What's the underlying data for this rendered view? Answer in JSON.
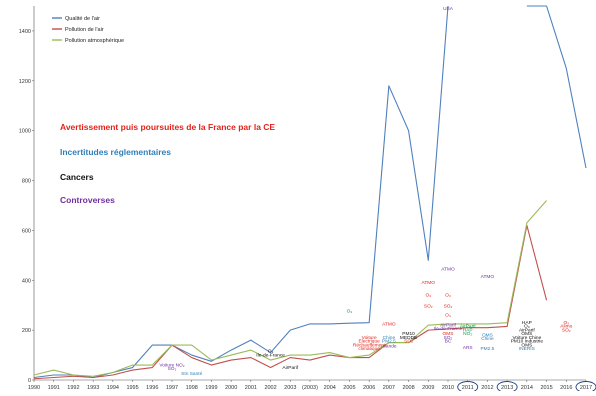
{
  "colors": {
    "air_quality": "#4f81bd",
    "air_pollution": "#c0504d",
    "atmospheric_pollution": "#9bbb59",
    "cat_red": "#e2231a",
    "cat_blue": "#2f7fb7",
    "cat_black": "#111111",
    "cat_purple": "#7030a0",
    "anno_green": "#00a050",
    "circle": "#1f3f7f"
  },
  "chart_data": {
    "type": "line",
    "categories": [
      "1990",
      "1991",
      "1992",
      "1993",
      "1994",
      "1995",
      "1996",
      "1997",
      "1998",
      "1999",
      "2000",
      "2001",
      "2002",
      "2003",
      "(2003)",
      "2004",
      "2005",
      "2006",
      "2007",
      "2008",
      "2009",
      "2010",
      "2011",
      "2012",
      "2013",
      "2014",
      "2015",
      "2016",
      "2017"
    ],
    "ylim": [
      0,
      1500
    ],
    "yticks": [
      0,
      200,
      400,
      600,
      800,
      1000,
      1200,
      1400
    ],
    "series": [
      {
        "name": "Qualité de l'air",
        "color_key": "air_quality",
        "values": [
          10,
          20,
          20,
          10,
          30,
          50,
          140,
          140,
          100,
          75,
          120,
          160,
          110,
          200,
          225,
          225,
          228,
          230,
          1180,
          1000,
          480,
          1500,
          null,
          null,
          null,
          1500,
          1500,
          1250,
          850
        ]
      },
      {
        "name": "Pollution de l'air",
        "color_key": "air_pollution",
        "values": [
          5,
          10,
          15,
          10,
          20,
          40,
          50,
          140,
          90,
          60,
          80,
          90,
          50,
          90,
          80,
          100,
          90,
          90,
          150,
          150,
          200,
          205,
          210,
          210,
          215,
          620,
          320,
          null,
          null
        ]
      },
      {
        "name": "Pollution atmosphérique",
        "color_key": "atmospheric_pollution",
        "values": [
          20,
          40,
          20,
          15,
          30,
          60,
          60,
          140,
          140,
          80,
          100,
          120,
          80,
          100,
          100,
          110,
          90,
          100,
          150,
          150,
          220,
          225,
          225,
          225,
          230,
          630,
          720,
          null,
          null
        ]
      }
    ],
    "category_labels": [
      {
        "text": "Avertissement puis poursuites de la France par la CE",
        "color_key": "cat_red"
      },
      {
        "text": "Incertitudes réglementaires",
        "color_key": "cat_blue"
      },
      {
        "text": "Cancers",
        "color_key": "cat_black"
      },
      {
        "text": "Controverses",
        "color_key": "cat_purple"
      }
    ],
    "annotations": [
      {
        "text": "USA",
        "color_key": "cat_purple",
        "cat": 21,
        "y": 1515
      },
      {
        "text": "ATMO",
        "color_key": "cat_purple",
        "cat": 21,
        "y": 440
      },
      {
        "text": "ATMO",
        "color_key": "cat_red",
        "cat": 20,
        "y": 385
      },
      {
        "text": "ATMO",
        "color_key": "cat_purple",
        "cat": 23,
        "y": 410
      },
      {
        "text": "O₃",
        "color_key": "cat_red",
        "cat": 20,
        "y": 335
      },
      {
        "text": "O₃",
        "color_key": "cat_red",
        "cat": 21,
        "y": 335
      },
      {
        "text": "SO₂",
        "color_key": "cat_red",
        "cat": 20,
        "y": 290
      },
      {
        "text": "SO₂",
        "color_key": "cat_red",
        "cat": 21,
        "y": 290
      },
      {
        "text": "O₃",
        "color_key": "cat_red",
        "cat": 21,
        "y": 255
      },
      {
        "text": "AirParif",
        "color_key": "cat_purple",
        "cat": 21,
        "y": 215
      },
      {
        "text": "Ile-de-France",
        "color_key": "cat_purple",
        "cat": 21,
        "y": 200
      },
      {
        "text": "OMS",
        "color_key": "cat_red",
        "cat": 21,
        "y": 180
      },
      {
        "text": "SO₂",
        "color_key": "cat_purple",
        "cat": 21,
        "y": 165
      },
      {
        "text": "BC",
        "color_key": "cat_purple",
        "cat": 21,
        "y": 150
      },
      {
        "text": "ARS",
        "color_key": "cat_purple",
        "cat": 22,
        "y": 125
      },
      {
        "text": "PM10",
        "color_key": "cat_black",
        "cat": 19,
        "y": 180
      },
      {
        "text": "MEDDE",
        "color_key": "cat_black",
        "cat": 19,
        "y": 165
      },
      {
        "text": "SO₂",
        "color_key": "cat_red",
        "cat": 19,
        "y": 150
      },
      {
        "text": "Islande",
        "color_key": "cat_purple",
        "cat": 18,
        "y": 130
      },
      {
        "text": "ATMO",
        "color_key": "cat_red",
        "cat": 18,
        "y": 218
      },
      {
        "text": "O₃",
        "color_key": "cat_green",
        "cat": 16,
        "y": 270
      },
      {
        "text": "Voiture",
        "color_key": "cat_red",
        "cat": 17,
        "y": 165
      },
      {
        "text": "Electrique",
        "color_key": "cat_red",
        "cat": 17,
        "y": 150
      },
      {
        "text": "Réchauffement",
        "color_key": "cat_red",
        "cat": 17,
        "y": 135
      },
      {
        "text": "climatique",
        "color_key": "cat_red",
        "cat": 17,
        "y": 120
      },
      {
        "text": "Chine",
        "color_key": "cat_blue",
        "cat": 18,
        "y": 165
      },
      {
        "text": "PM2.5",
        "color_key": "cat_blue",
        "cat": 18,
        "y": 150
      },
      {
        "text": "AirParif",
        "color_key": "cat_green",
        "cat": 22,
        "y": 210
      },
      {
        "text": "HAP",
        "color_key": "cat_green",
        "cat": 22,
        "y": 195
      },
      {
        "text": "NO₂",
        "color_key": "cat_green",
        "cat": 22,
        "y": 180
      },
      {
        "text": "OMS",
        "color_key": "cat_blue",
        "cat": 23,
        "y": 175
      },
      {
        "text": "Chine",
        "color_key": "cat_blue",
        "cat": 23,
        "y": 160
      },
      {
        "text": "PM2.5",
        "color_key": "cat_blue",
        "cat": 23,
        "y": 120
      },
      {
        "text": "HAP",
        "color_key": "cat_black",
        "cat": 25,
        "y": 225
      },
      {
        "text": "O₃",
        "color_key": "cat_black",
        "cat": 25,
        "y": 210
      },
      {
        "text": "AirParif",
        "color_key": "cat_black",
        "cat": 25,
        "y": 195
      },
      {
        "text": "OMS",
        "color_key": "cat_black",
        "cat": 25,
        "y": 180
      },
      {
        "text": "Voiture Chine",
        "color_key": "cat_black",
        "cat": 25,
        "y": 165
      },
      {
        "text": "PM10 Industrie",
        "color_key": "cat_black",
        "cat": 25,
        "y": 150
      },
      {
        "text": "OMS",
        "color_key": "cat_black",
        "cat": 25,
        "y": 135
      },
      {
        "text": "INERIS",
        "color_key": "cat_blue",
        "cat": 25,
        "y": 120
      },
      {
        "text": "O₃",
        "color_key": "cat_red",
        "cat": 27,
        "y": 225
      },
      {
        "text": "Alimo",
        "color_key": "cat_red",
        "cat": 27,
        "y": 210
      },
      {
        "text": "SO₂",
        "color_key": "cat_red",
        "cat": 27,
        "y": 195
      },
      {
        "text": "O₃",
        "color_key": "cat_black",
        "cat": 12,
        "y": 110
      },
      {
        "text": "Ile-de-France",
        "color_key": "cat_black",
        "cat": 12,
        "y": 95
      },
      {
        "text": "AirParif",
        "color_key": "cat_black",
        "cat": 13,
        "y": 45
      },
      {
        "text": "Voiture NO₂",
        "color_key": "cat_purple",
        "cat": 7,
        "y": 55
      },
      {
        "text": "SO₂",
        "color_key": "cat_purple",
        "cat": 7,
        "y": 40
      },
      {
        "text": "Stn Santé",
        "color_key": "cat_blue",
        "cat": 8,
        "y": 20
      }
    ],
    "circled_ticks": [
      "2011",
      "2013",
      "2017"
    ]
  }
}
